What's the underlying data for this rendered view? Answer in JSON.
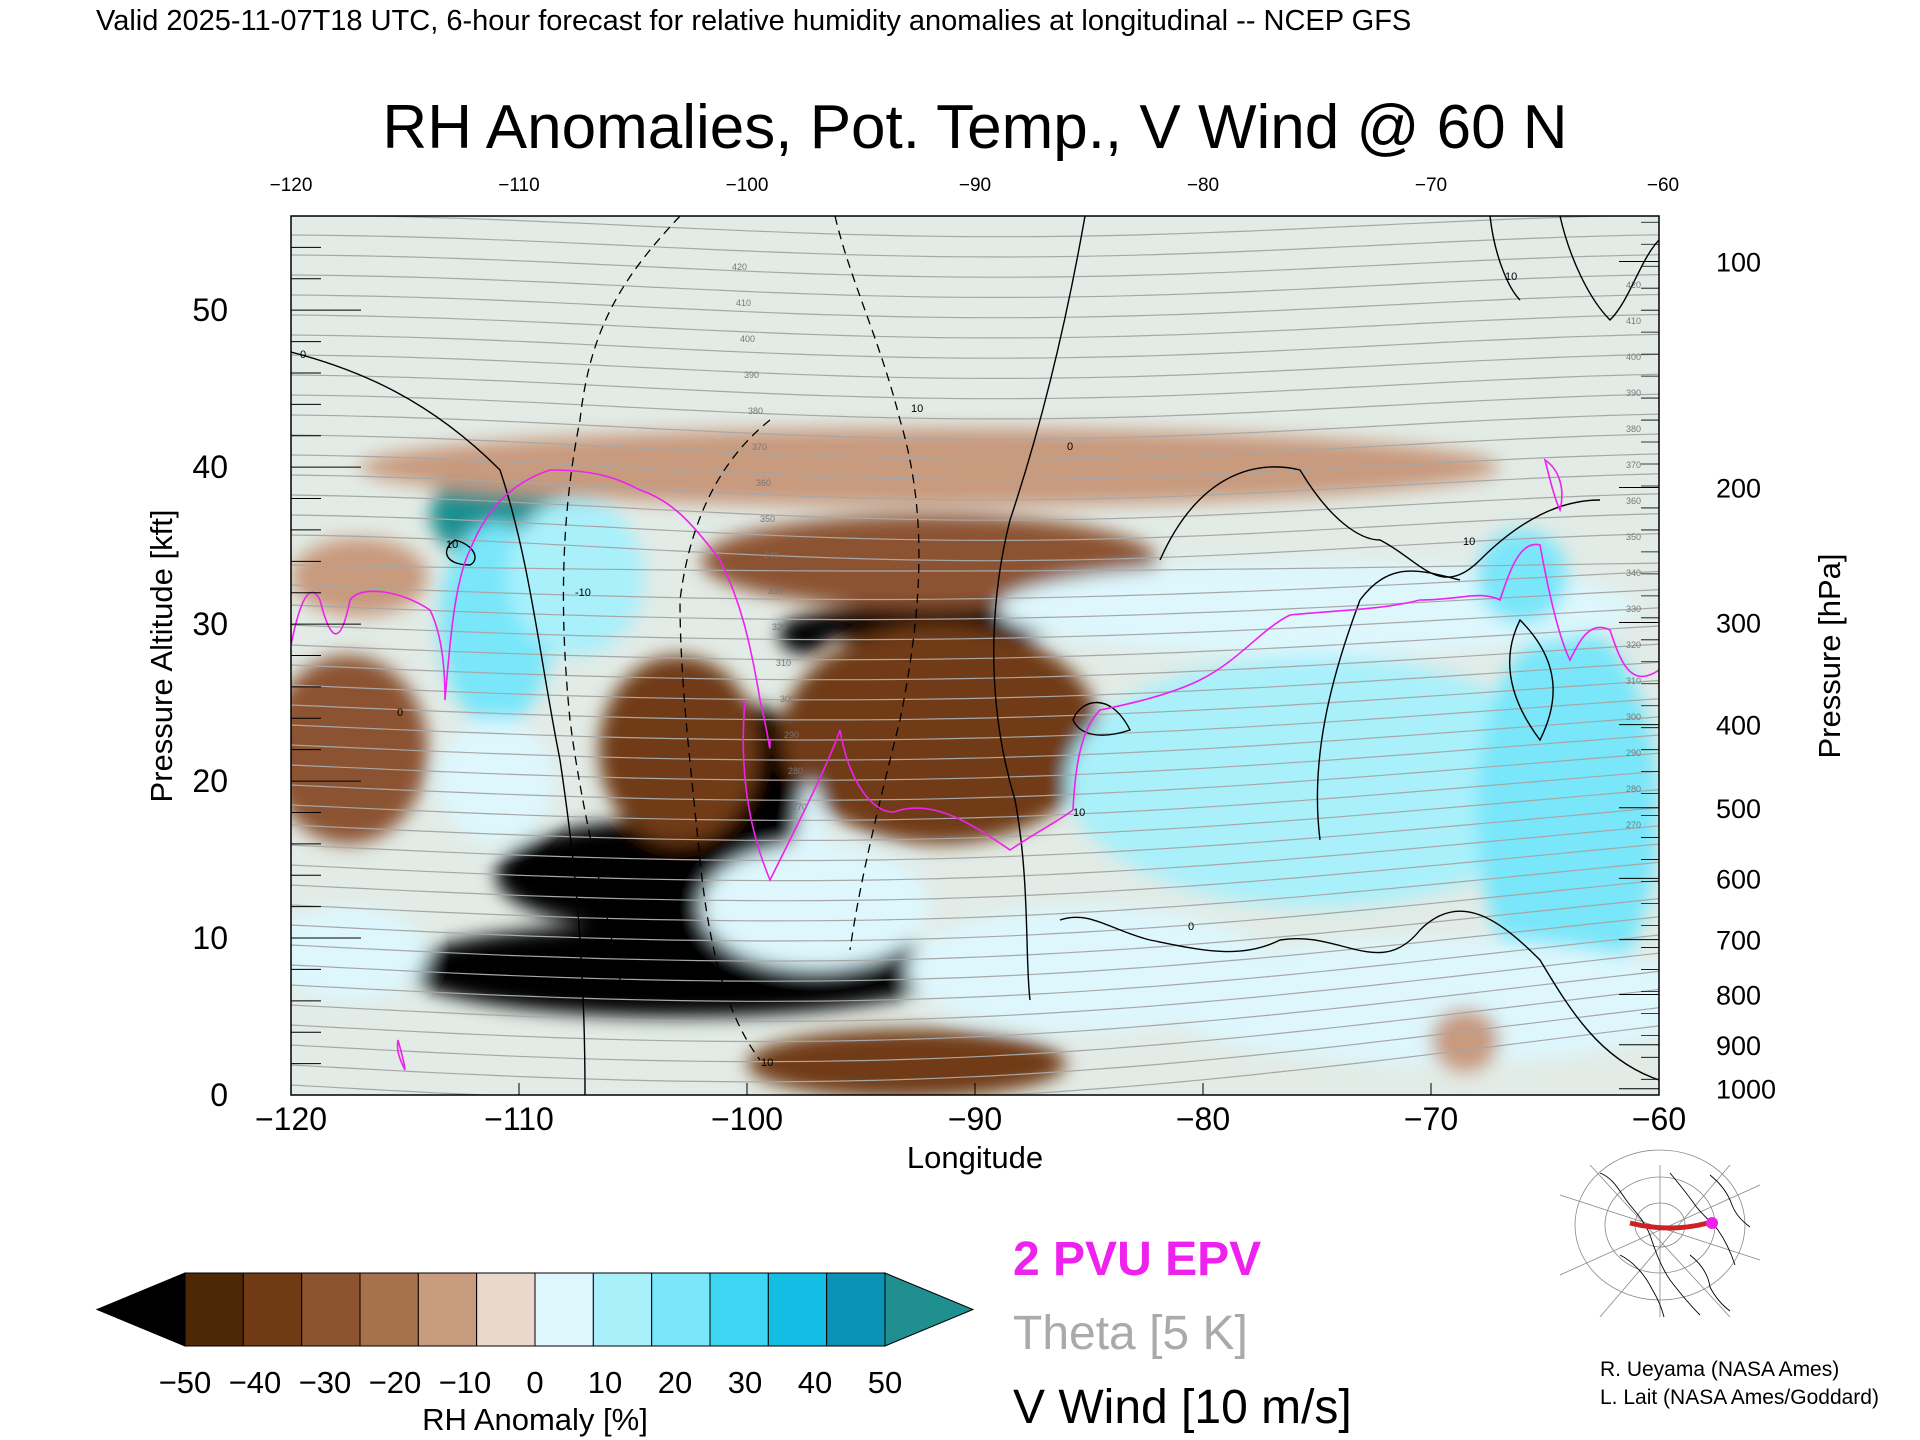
{
  "page": {
    "header": "Valid 2025-11-07T18 UTC, 6-hour forecast for relative humidity anomalies at longitudinal -- NCEP GFS",
    "credits": [
      "R. Ueyama (NASA Ames)",
      "L. Lait (NASA Ames/Goddard)"
    ]
  },
  "chart_data": {
    "type": "heatmap",
    "title": "RH Anomalies, Pot. Temp., V Wind @ 60 N",
    "xlabel": "Longitude",
    "ylabel": "Pressure Altitude [kft]",
    "y2label": "Pressure [hPa]",
    "xlim": [
      -120,
      -60
    ],
    "ylim": [
      0,
      56
    ],
    "x_ticks": [
      -120,
      -110,
      -100,
      -90,
      -80,
      -70,
      -60
    ],
    "y_ticks": [
      0,
      10,
      20,
      30,
      40,
      50
    ],
    "pressure_ticks": [
      {
        "label": "100",
        "kft": 53.1
      },
      {
        "label": "200",
        "kft": 38.7
      },
      {
        "label": "300",
        "kft": 30.1
      },
      {
        "label": "400",
        "kft": 23.6
      },
      {
        "label": "500",
        "kft": 18.3
      },
      {
        "label": "600",
        "kft": 13.8
      },
      {
        "label": "700",
        "kft": 9.9
      },
      {
        "label": "800",
        "kft": 6.4
      },
      {
        "label": "900",
        "kft": 3.2
      },
      {
        "label": "1000",
        "kft": 0.4
      }
    ],
    "colorbar": {
      "label": "RH Anomaly [%]",
      "ticks": [
        -50,
        -40,
        -30,
        -20,
        -10,
        0,
        10,
        20,
        30,
        40,
        50
      ],
      "colors": [
        "#000000",
        "#4d2806",
        "#6f3a14",
        "#8c5330",
        "#a8714e",
        "#c89a7e",
        "#ead8cc",
        "#ddf7fd",
        "#a9f0fb",
        "#79e6f9",
        "#3fd6f3",
        "#13bde4",
        "#0a93b5",
        "#1f8f8f"
      ],
      "extend": "both"
    },
    "legend": [
      {
        "label": "2 PVU EPV",
        "color": "#ee22ee"
      },
      {
        "label": "Theta [5 K]",
        "color": "#aaaaaa"
      },
      {
        "label": "V Wind [10 m/s]",
        "color": "#000000"
      }
    ],
    "theta_contour_labels": [
      "420",
      "410",
      "400",
      "390",
      "380",
      "370",
      "360",
      "350",
      "340",
      "330",
      "320",
      "310",
      "300",
      "290",
      "280",
      "270"
    ],
    "vwind_contour_labels": [
      "0",
      "10",
      "-10"
    ],
    "inset": {
      "description_icon": "polar-stereographic-map-icon",
      "section_color": "#cc2222",
      "marker_color": "#ee22ee"
    },
    "rh_anomaly_blobs": [
      {
        "cx": -110.3,
        "cy": 37.0,
        "rx": 3.6,
        "ry": 3.4,
        "v": 55
      },
      {
        "cx": -111.0,
        "cy": 30.0,
        "rx": 2.5,
        "ry": 6.5,
        "v": 32
      },
      {
        "cx": -111.0,
        "cy": 20.0,
        "rx": 2.5,
        "ry": 4.0,
        "v": 14
      },
      {
        "cx": -107.5,
        "cy": 33.0,
        "rx": 3.0,
        "ry": 5.0,
        "v": 22
      },
      {
        "cx": -103.0,
        "cy": 8.0,
        "rx": 12.0,
        "ry": 3.0,
        "v": -60
      },
      {
        "cx": -104.0,
        "cy": 14.0,
        "rx": 7.0,
        "ry": 3.5,
        "v": -60
      },
      {
        "cx": -100.5,
        "cy": 20.0,
        "rx": 3.5,
        "ry": 5.0,
        "v": -60
      },
      {
        "cx": -103.0,
        "cy": 22.0,
        "rx": 3.5,
        "ry": 6.0,
        "v": -32
      },
      {
        "cx": -92.0,
        "cy": 30.0,
        "rx": 6.0,
        "ry": 1.3,
        "v": -60
      },
      {
        "cx": -97.5,
        "cy": 29.3,
        "rx": 1.1,
        "ry": 1.2,
        "v": -60
      },
      {
        "cx": -91.5,
        "cy": 23.0,
        "rx": 7.0,
        "ry": 7.0,
        "v": -33
      },
      {
        "cx": -92.0,
        "cy": 34.0,
        "rx": 10.0,
        "ry": 3.0,
        "v": -25
      },
      {
        "cx": -93.0,
        "cy": 2.0,
        "rx": 7.0,
        "ry": 2.2,
        "v": -35
      },
      {
        "cx": -117.5,
        "cy": 22.0,
        "rx": 3.5,
        "ry": 6.0,
        "v": -28
      },
      {
        "cx": -117.0,
        "cy": 33.0,
        "rx": 3.0,
        "ry": 2.5,
        "v": -8
      },
      {
        "cx": -92.0,
        "cy": 40.0,
        "rx": 25.0,
        "ry": 2.5,
        "v": -6
      },
      {
        "cx": -75.0,
        "cy": 20.0,
        "rx": 11.0,
        "ry": 8.0,
        "v": 28
      },
      {
        "cx": -64.0,
        "cy": 18.0,
        "rx": 4.0,
        "ry": 12.0,
        "v": 32
      },
      {
        "cx": -70.0,
        "cy": 6.0,
        "rx": 12.0,
        "ry": 4.0,
        "v": 18
      },
      {
        "cx": -75.0,
        "cy": 31.0,
        "rx": 14.0,
        "ry": 3.0,
        "v": 14
      },
      {
        "cx": -66.0,
        "cy": 33.0,
        "rx": 2.0,
        "ry": 3.0,
        "v": 35
      },
      {
        "cx": -85.0,
        "cy": 8.0,
        "rx": 8.0,
        "ry": 4.0,
        "v": 12
      },
      {
        "cx": -97.0,
        "cy": 12.0,
        "rx": 5.0,
        "ry": 4.0,
        "v": 10
      },
      {
        "cx": -117.5,
        "cy": 9.0,
        "rx": 3.5,
        "ry": 3.0,
        "v": 14
      },
      {
        "cx": -68.5,
        "cy": 3.5,
        "rx": 1.5,
        "ry": 2.0,
        "v": -10
      },
      {
        "cx": -97.2,
        "cy": 16.0,
        "rx": 0.6,
        "ry": 4.0,
        "v": 15
      }
    ]
  }
}
